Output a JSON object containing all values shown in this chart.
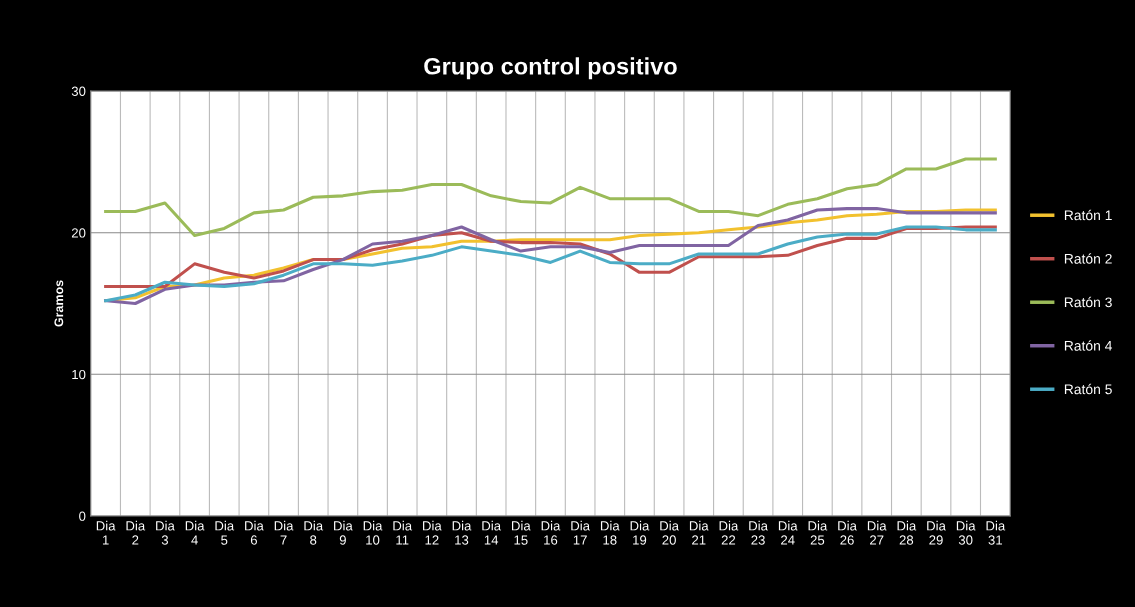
{
  "chart_data": {
    "type": "line",
    "title": "Grupo control positivo",
    "ylabel": "Gramos",
    "categories": [
      "Dia\n1",
      "Dia\n2",
      "Dia\n3",
      "Dia\n4",
      "Dia\n5",
      "Dia\n6",
      "Dia\n7",
      "Dia\n8",
      "Dia\n9",
      "Dia\n10",
      "Dia\n11",
      "Dia\n12",
      "Dia\n13",
      "Dia\n14",
      "Dia\n15",
      "Dia\n16",
      "Dia\n17",
      "Dia\n18",
      "Dia\n19",
      "Dia\n20",
      "Dia\n21",
      "Dia\n22",
      "Dia\n23",
      "Dia\n24",
      "Dia\n25",
      "Dia\n26",
      "Dia\n27",
      "Dia\n28",
      "Dia\n29",
      "Dia\n30",
      "Dia\n31"
    ],
    "ylim": [
      0,
      30
    ],
    "yticks": [
      0,
      10,
      20,
      30
    ],
    "grid": true,
    "legend": "right",
    "marker": "none",
    "line_style": "solid",
    "series": [
      {
        "name": "Ratón 1",
        "color": "#f2c12e",
        "values": [
          15.2,
          15.4,
          16.2,
          16.3,
          16.8,
          17.0,
          17.5,
          18.1,
          18.1,
          18.5,
          18.9,
          19.0,
          19.4,
          19.4,
          19.5,
          19.5,
          19.5,
          19.5,
          19.8,
          19.9,
          20.0,
          20.2,
          20.4,
          20.7,
          20.9,
          21.2,
          21.3,
          21.5,
          21.5,
          21.6,
          21.6
        ]
      },
      {
        "name": "Ratón 2",
        "color": "#c0504d",
        "values": [
          16.2,
          16.2,
          16.2,
          17.8,
          17.2,
          16.8,
          17.3,
          18.1,
          18.1,
          18.8,
          19.2,
          19.8,
          20.0,
          19.4,
          19.3,
          19.3,
          19.2,
          18.5,
          17.2,
          17.2,
          18.3,
          18.3,
          18.3,
          18.4,
          19.1,
          19.6,
          19.6,
          20.3,
          20.3,
          20.4,
          20.4
        ]
      },
      {
        "name": "Ratón 3",
        "color": "#9bbb59",
        "values": [
          21.5,
          21.5,
          22.1,
          19.8,
          20.3,
          21.4,
          21.6,
          22.5,
          22.6,
          22.9,
          23.0,
          23.4,
          23.4,
          22.6,
          22.2,
          22.1,
          23.2,
          22.4,
          22.4,
          22.4,
          21.5,
          21.5,
          21.2,
          22.0,
          22.4,
          23.1,
          23.4,
          24.5,
          24.5,
          25.2,
          25.2
        ]
      },
      {
        "name": "Ratón 4",
        "color": "#8064a2",
        "values": [
          15.2,
          15.0,
          16.0,
          16.3,
          16.3,
          16.5,
          16.6,
          17.4,
          18.1,
          19.2,
          19.4,
          19.8,
          20.4,
          19.5,
          18.7,
          19.0,
          19.0,
          18.6,
          19.1,
          19.1,
          19.1,
          19.1,
          20.5,
          20.9,
          21.6,
          21.7,
          21.7,
          21.4,
          21.4,
          21.4,
          21.4
        ]
      },
      {
        "name": "Ratón 5",
        "color": "#4bacc6",
        "values": [
          15.2,
          15.6,
          16.5,
          16.3,
          16.2,
          16.4,
          17.0,
          17.8,
          17.8,
          17.7,
          18.0,
          18.4,
          19.0,
          18.7,
          18.4,
          17.9,
          18.7,
          17.9,
          17.8,
          17.8,
          18.5,
          18.5,
          18.5,
          19.2,
          19.7,
          19.9,
          19.9,
          20.4,
          20.4,
          20.2,
          20.2
        ]
      }
    ]
  }
}
